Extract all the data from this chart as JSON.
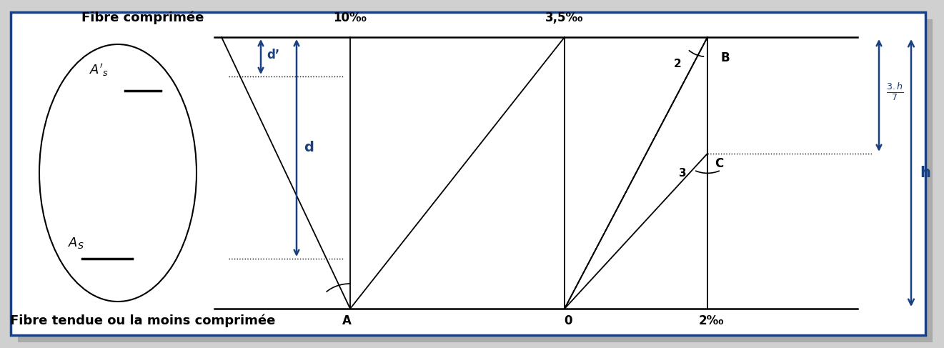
{
  "bg_color": "#ffffff",
  "border_color": "#1a4080",
  "line_color": "#000000",
  "blue_color": "#1a4080",
  "shadow_color": "#cccccc",
  "top_label": "Fibre comprimée",
  "bottom_label": "Fibre tendue ou la moins comprimée",
  "label_10": "10‰",
  "label_35": "3,5‰",
  "label_0": "0",
  "label_2": "2‰",
  "label_A": "A",
  "label_B": "B",
  "label_C": "C",
  "label_d": "d",
  "label_dprime": "d’",
  "label_h": "h",
  "label_pivot2": "2",
  "label_pivot3": "3",
  "label_As": "A_S",
  "label_Asprime": "A’_s"
}
